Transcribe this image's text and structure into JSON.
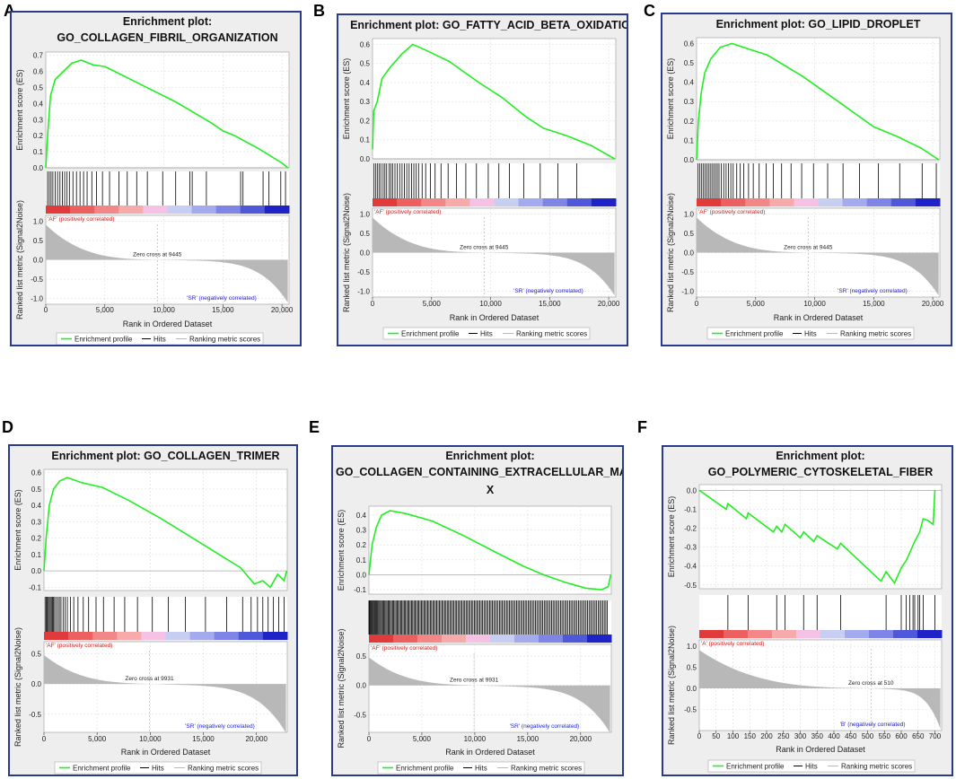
{
  "legend": {
    "enrichment": "Enrichment profile",
    "hits": "Hits",
    "ranking": "Ranking metric scores"
  },
  "axis": {
    "es_label": "Enrichment score (ES)",
    "rank_label": "Ranked list metric (Signal2Noise)",
    "x_label": "Rank in Ordered Dataset"
  },
  "colors": {
    "profile": "#22ee22",
    "hits": "#000000",
    "ranking": "#b8b8b8",
    "frame": "#2a3b8c",
    "pos_text": "#cc2222",
    "neg_text": "#2222cc"
  },
  "chart_data": [
    {
      "letter": "A",
      "type": "line",
      "title_lines": [
        "Enrichment plot:",
        "GO_COLLAGEN_FIBRIL_ORGANIZATION"
      ],
      "es_ticks": [
        0,
        0.1,
        0.2,
        0.3,
        0.4,
        0.5,
        0.6,
        0.7
      ],
      "es_ylim": [
        0,
        0.72
      ],
      "x_max": 20600,
      "x_ticks": [
        0,
        5000,
        10000,
        15000,
        20000
      ],
      "x_tick_labels": [
        "0",
        "5,000",
        "10,000",
        "15,000",
        "20,000"
      ],
      "es_curve": [
        [
          0,
          0
        ],
        [
          150,
          0.2
        ],
        [
          400,
          0.45
        ],
        [
          800,
          0.55
        ],
        [
          1500,
          0.6
        ],
        [
          2200,
          0.65
        ],
        [
          3000,
          0.67
        ],
        [
          4000,
          0.64
        ],
        [
          5000,
          0.63
        ],
        [
          8000,
          0.52
        ],
        [
          11000,
          0.41
        ],
        [
          14000,
          0.28
        ],
        [
          15000,
          0.23
        ],
        [
          16000,
          0.2
        ],
        [
          18000,
          0.12
        ],
        [
          20000,
          0.03
        ],
        [
          20500,
          0
        ]
      ],
      "hits": [
        150,
        300,
        450,
        600,
        800,
        1000,
        1200,
        1400,
        1600,
        1800,
        2000,
        2300,
        2600,
        2900,
        3200,
        3500,
        3900,
        4300,
        4800,
        5400,
        6200,
        6900,
        7700,
        8600,
        9900,
        11000,
        12200,
        12400,
        13600,
        16500,
        16700,
        18400,
        18900,
        19900,
        20300
      ],
      "rank_ticks": [
        1,
        0.5,
        0,
        -0.5,
        -1
      ],
      "rank_tick_labels": [
        "1.0",
        "0.5",
        "0.0",
        "-0.5",
        "-1.0"
      ],
      "rank_ylim": [
        -1.15,
        1.15
      ],
      "rank_start": 0.85,
      "rank_end": -1.05,
      "zero_cross": 9445,
      "zero_label": "Zero cross at 9445",
      "pos_label": "'AF' (positively correlated)",
      "neg_label": "'SR' (negatively correlated)"
    },
    {
      "letter": "B",
      "type": "line",
      "title_lines": [
        "Enrichment plot: GO_FATTY_ACID_BETA_OXIDATION"
      ],
      "es_ticks": [
        0,
        0.1,
        0.2,
        0.3,
        0.4,
        0.5,
        0.6
      ],
      "es_ylim": [
        0,
        0.63
      ],
      "x_max": 20600,
      "x_ticks": [
        0,
        5000,
        10000,
        15000,
        20000
      ],
      "x_tick_labels": [
        "0",
        "5,000",
        "10,000",
        "15,000",
        "20,000"
      ],
      "es_curve": [
        [
          0,
          0.05
        ],
        [
          100,
          0.25
        ],
        [
          400,
          0.3
        ],
        [
          800,
          0.42
        ],
        [
          1500,
          0.48
        ],
        [
          2500,
          0.55
        ],
        [
          3400,
          0.6
        ],
        [
          4500,
          0.57
        ],
        [
          6500,
          0.51
        ],
        [
          9000,
          0.4
        ],
        [
          11000,
          0.32
        ],
        [
          13000,
          0.22
        ],
        [
          14500,
          0.16
        ],
        [
          16500,
          0.12
        ],
        [
          18500,
          0.07
        ],
        [
          20500,
          0
        ]
      ],
      "hits": [
        100,
        250,
        400,
        550,
        700,
        900,
        1050,
        1200,
        1400,
        1550,
        1700,
        1900,
        2100,
        2300,
        2500,
        2700,
        2900,
        3100,
        3300,
        3500,
        3700,
        3900,
        4200,
        4500,
        4900,
        5300,
        5800,
        6400,
        7100,
        7900,
        8800,
        9800,
        10700,
        11600,
        12800,
        14200,
        15700,
        17300
      ],
      "rank_ticks": [
        1,
        0.5,
        0,
        -0.5,
        -1
      ],
      "rank_tick_labels": [
        "1.0",
        "0.5",
        "0.0",
        "-0.5",
        "-1.0"
      ],
      "rank_ylim": [
        -1.15,
        1.15
      ],
      "rank_start": 0.85,
      "rank_end": -1.05,
      "zero_cross": 9445,
      "zero_label": "Zero cross at 9445",
      "pos_label": "'AF' (positively correlated)",
      "neg_label": "'SR' (negatively correlated)"
    },
    {
      "letter": "C",
      "type": "line",
      "title_lines": [
        "Enrichment plot: GO_LIPID_DROPLET"
      ],
      "es_ticks": [
        0,
        0.1,
        0.2,
        0.3,
        0.4,
        0.5,
        0.6
      ],
      "es_ylim": [
        0,
        0.63
      ],
      "x_max": 20600,
      "x_ticks": [
        0,
        5000,
        10000,
        15000,
        20000
      ],
      "x_tick_labels": [
        "0",
        "5,000",
        "10,000",
        "15,000",
        "20,000"
      ],
      "es_curve": [
        [
          0,
          0
        ],
        [
          150,
          0.2
        ],
        [
          400,
          0.35
        ],
        [
          700,
          0.45
        ],
        [
          1200,
          0.52
        ],
        [
          2000,
          0.58
        ],
        [
          3000,
          0.6
        ],
        [
          4500,
          0.57
        ],
        [
          6000,
          0.54
        ],
        [
          9000,
          0.43
        ],
        [
          12000,
          0.3
        ],
        [
          15000,
          0.17
        ],
        [
          17000,
          0.12
        ],
        [
          19000,
          0.06
        ],
        [
          20500,
          0
        ]
      ],
      "hits": [
        100,
        250,
        400,
        550,
        700,
        850,
        1000,
        1150,
        1300,
        1450,
        1600,
        1750,
        1900,
        2100,
        2300,
        2500,
        2700,
        2900,
        3100,
        3400,
        3700,
        4000,
        4400,
        4800,
        5300,
        5900,
        6500,
        7200,
        8000,
        8900,
        9900,
        11100,
        12400,
        13800,
        15400,
        17200,
        19100,
        20300
      ],
      "rank_ticks": [
        1,
        0.5,
        0,
        -0.5,
        -1
      ],
      "rank_tick_labels": [
        "1.0",
        "0.5",
        "0.0",
        "-0.5",
        "-1.0"
      ],
      "rank_ylim": [
        -1.15,
        1.15
      ],
      "rank_start": 0.85,
      "rank_end": -1.05,
      "zero_cross": 9445,
      "zero_label": "Zero cross at 9445",
      "pos_label": "'AF' (positively correlated)",
      "neg_label": "'SR' (negatively correlated)"
    },
    {
      "letter": "D",
      "type": "line",
      "title_lines": [
        "Enrichment plot: GO_COLLAGEN_TRIMER"
      ],
      "es_ticks": [
        -0.1,
        0,
        0.1,
        0.2,
        0.3,
        0.4,
        0.5,
        0.6
      ],
      "es_ylim": [
        -0.12,
        0.62
      ],
      "x_max": 22900,
      "x_ticks": [
        0,
        5000,
        10000,
        15000,
        20000
      ],
      "x_tick_labels": [
        "0",
        "5,000",
        "10,000",
        "15,000",
        "20,000"
      ],
      "es_curve": [
        [
          0,
          0
        ],
        [
          200,
          0.2
        ],
        [
          500,
          0.4
        ],
        [
          900,
          0.5
        ],
        [
          1500,
          0.55
        ],
        [
          2200,
          0.57
        ],
        [
          3500,
          0.54
        ],
        [
          5500,
          0.51
        ],
        [
          8000,
          0.43
        ],
        [
          11000,
          0.32
        ],
        [
          14000,
          0.2
        ],
        [
          16500,
          0.1
        ],
        [
          18500,
          0.02
        ],
        [
          19800,
          -0.08
        ],
        [
          20600,
          -0.06
        ],
        [
          21300,
          -0.1
        ],
        [
          22000,
          -0.02
        ],
        [
          22600,
          -0.06
        ],
        [
          22850,
          0
        ]
      ],
      "hits": [
        100,
        200,
        300,
        400,
        500,
        600,
        700,
        800,
        900,
        1000,
        1150,
        1300,
        1450,
        1600,
        1800,
        2000,
        2200,
        2500,
        2800,
        3200,
        3700,
        4200,
        4900,
        5600,
        6600,
        7600,
        8800,
        10200,
        11700,
        13300,
        15200,
        17200,
        18700,
        19500,
        20100,
        20600,
        21100,
        21600,
        22100,
        22600
      ],
      "rank_ticks": [
        0.5,
        0,
        -0.5
      ],
      "rank_tick_labels": [
        "0.5",
        "0.0",
        "-0.5"
      ],
      "rank_ylim": [
        -0.8,
        0.7
      ],
      "rank_start": 0.42,
      "rank_end": -0.75,
      "zero_cross": 9931,
      "zero_label": "Zero cross at 9931",
      "pos_label": "'AF' (positively correlated)",
      "neg_label": "'SR' (negatively correlated)"
    },
    {
      "letter": "E",
      "type": "line",
      "title_lines": [
        "Enrichment plot:",
        "GO_COLLAGEN_CONTAINING_EXTRACELLULAR_MATRI",
        "X"
      ],
      "es_ticks": [
        -0.1,
        0,
        0.1,
        0.2,
        0.3,
        0.4
      ],
      "es_ylim": [
        -0.13,
        0.46
      ],
      "x_max": 22900,
      "x_ticks": [
        0,
        5000,
        10000,
        15000,
        20000
      ],
      "x_tick_labels": [
        "0",
        "5,000",
        "10,000",
        "15,000",
        "20,000"
      ],
      "es_curve": [
        [
          0,
          0
        ],
        [
          300,
          0.2
        ],
        [
          700,
          0.32
        ],
        [
          1200,
          0.4
        ],
        [
          2000,
          0.43
        ],
        [
          3500,
          0.41
        ],
        [
          6000,
          0.36
        ],
        [
          9000,
          0.26
        ],
        [
          12000,
          0.15
        ],
        [
          14500,
          0.06
        ],
        [
          16500,
          0
        ],
        [
          18500,
          -0.05
        ],
        [
          20500,
          -0.09
        ],
        [
          22000,
          -0.1
        ],
        [
          22600,
          -0.08
        ],
        [
          22850,
          0
        ]
      ],
      "hits_density": 180,
      "rank_ticks": [
        0.5,
        0,
        -0.5
      ],
      "rank_tick_labels": [
        "0.5",
        "0.0",
        "-0.5"
      ],
      "rank_ylim": [
        -0.8,
        0.7
      ],
      "rank_start": 0.42,
      "rank_end": -0.75,
      "zero_cross": 9931,
      "zero_label": "Zero cross at 9931",
      "pos_label": "'AF' (positively correlated)",
      "neg_label": "'SR' (negatively correlated)"
    },
    {
      "letter": "F",
      "type": "line",
      "title_lines": [
        "Enrichment plot:",
        "GO_POLYMERIC_CYTOSKELETAL_FIBER"
      ],
      "es_ticks": [
        -0.5,
        -0.4,
        -0.3,
        -0.2,
        -0.1,
        0
      ],
      "es_ylim": [
        -0.52,
        0.03
      ],
      "x_max": 720,
      "x_ticks": [
        0,
        50,
        100,
        150,
        200,
        250,
        300,
        350,
        400,
        450,
        500,
        550,
        600,
        650,
        700
      ],
      "x_tick_labels": [
        "0",
        "50",
        "100",
        "150",
        "200",
        "250",
        "300",
        "350",
        "400",
        "450",
        "500",
        "550",
        "600",
        "650",
        "700"
      ],
      "es_curve": [
        [
          0,
          0
        ],
        [
          80,
          -0.1
        ],
        [
          85,
          -0.07
        ],
        [
          140,
          -0.15
        ],
        [
          145,
          -0.12
        ],
        [
          220,
          -0.22
        ],
        [
          230,
          -0.19
        ],
        [
          245,
          -0.22
        ],
        [
          255,
          -0.18
        ],
        [
          300,
          -0.25
        ],
        [
          310,
          -0.22
        ],
        [
          340,
          -0.27
        ],
        [
          350,
          -0.24
        ],
        [
          410,
          -0.31
        ],
        [
          420,
          -0.28
        ],
        [
          540,
          -0.48
        ],
        [
          555,
          -0.43
        ],
        [
          580,
          -0.49
        ],
        [
          600,
          -0.41
        ],
        [
          615,
          -0.37
        ],
        [
          625,
          -0.33
        ],
        [
          640,
          -0.27
        ],
        [
          655,
          -0.22
        ],
        [
          665,
          -0.15
        ],
        [
          680,
          -0.16
        ],
        [
          695,
          -0.18
        ],
        [
          700,
          0
        ]
      ],
      "hits": [
        85,
        145,
        230,
        255,
        310,
        350,
        420,
        555,
        600,
        615,
        625,
        635,
        640,
        650,
        655,
        665,
        700
      ],
      "rank_ticks": [
        1,
        0.5,
        0,
        -0.5
      ],
      "rank_tick_labels": [
        "1.0",
        "0.5",
        "0.0",
        "-0.5"
      ],
      "rank_ylim": [
        -1.0,
        1.15
      ],
      "rank_start": 0.85,
      "rank_end": -0.9,
      "zero_cross": 510,
      "zero_label": "Zero cross at 510",
      "pos_label": "'A' (positively correlated)",
      "neg_label": "'B' (negatively correlated)"
    }
  ]
}
